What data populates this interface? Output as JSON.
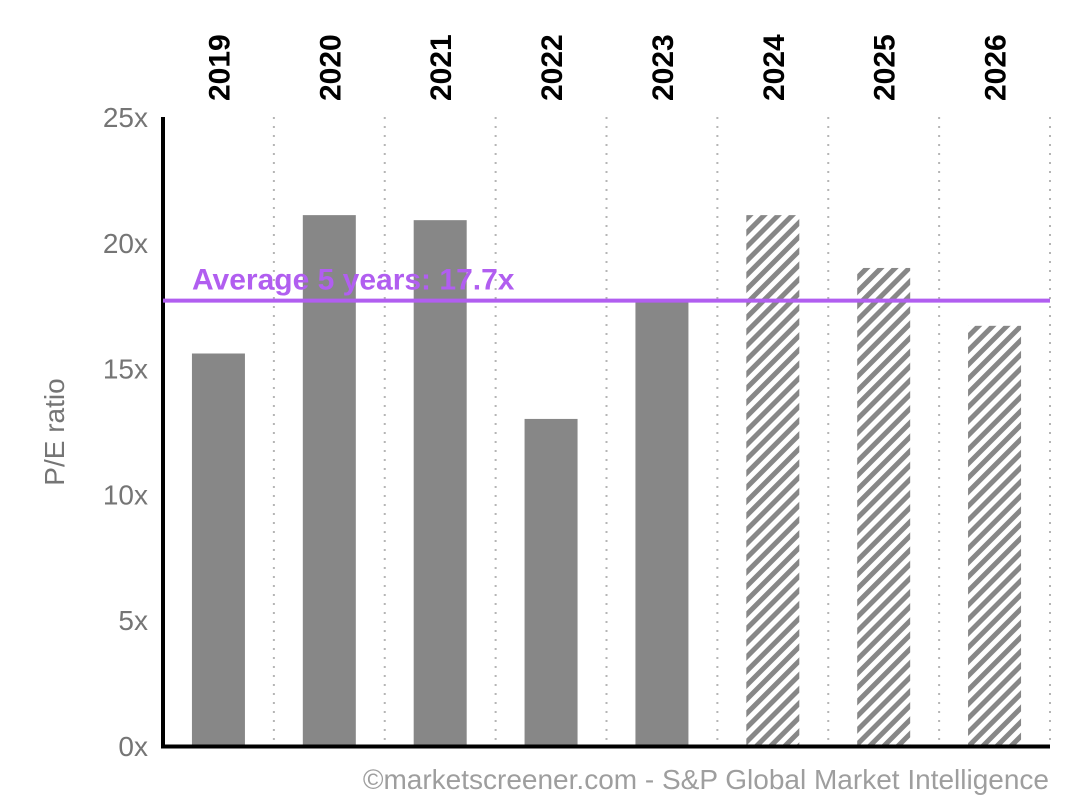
{
  "chart_data": {
    "type": "bar",
    "categories": [
      "2019",
      "2020",
      "2021",
      "2022",
      "2023",
      "2024",
      "2025",
      "2026"
    ],
    "values": [
      15.6,
      21.1,
      20.9,
      13,
      17.7,
      21.1,
      19,
      16.7
    ],
    "estimated": [
      false,
      false,
      false,
      false,
      false,
      true,
      true,
      true
    ],
    "ylabel": "P/E ratio",
    "ylim": [
      0,
      25
    ],
    "yticks": [
      0,
      5,
      10,
      15,
      20,
      25
    ],
    "ytick_labels": [
      "0x",
      "5x",
      "10x",
      "15x",
      "20x",
      "25x"
    ],
    "average": {
      "value": 17.7,
      "label": "Average 5 years: 17.7x"
    },
    "category_label_position": "top",
    "grid": "vertical dotted separators",
    "bar_color": "#878787",
    "average_color": "#b15ef0",
    "credit": "©marketscreener.com - S&P Global Market Intelligence"
  }
}
